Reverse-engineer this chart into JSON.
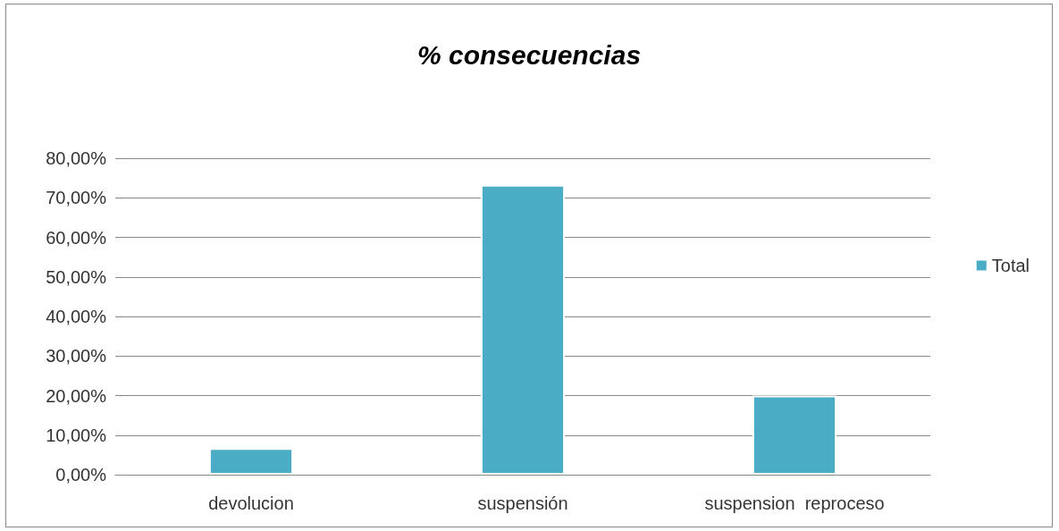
{
  "chart_data": {
    "type": "bar",
    "title": "% consecuencias",
    "categories": [
      "devolucion",
      "suspensión",
      "suspension  reproceso"
    ],
    "series": [
      {
        "name": "Total",
        "color": "#4bacc6",
        "values": [
          6.7,
          73.3,
          20
        ]
      }
    ],
    "ylim": [
      0,
      80
    ],
    "yticks": [
      {
        "value": 0,
        "label": "0,00%"
      },
      {
        "value": 10,
        "label": "10,00%"
      },
      {
        "value": 20,
        "label": "20,00%"
      },
      {
        "value": 30,
        "label": "30,00%"
      },
      {
        "value": 40,
        "label": "40,00%"
      },
      {
        "value": 50,
        "label": "50,00%"
      },
      {
        "value": 60,
        "label": "60,00%"
      },
      {
        "value": 70,
        "label": "70,00%"
      },
      {
        "value": 80,
        "label": "80,00%"
      }
    ],
    "grid": "y",
    "legend": "right"
  }
}
